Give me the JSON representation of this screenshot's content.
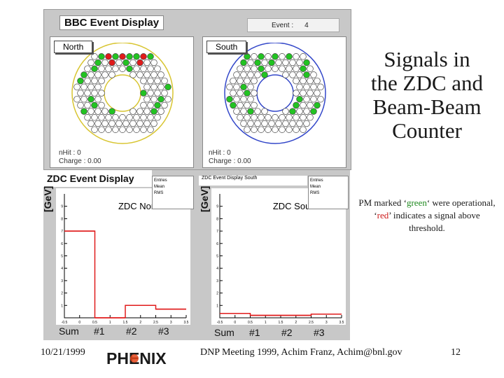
{
  "bbc": {
    "title": "BBC Event Display",
    "event_label": "Event :",
    "event_value": "4",
    "north": {
      "tab": "North",
      "nhit_label": "nHit : 0",
      "charge_label": "Charge :",
      "charge_value": "0.00"
    },
    "south": {
      "tab": "South",
      "nhit_label": "nHit : 0",
      "charge_label": "Charge :",
      "charge_value": "0.00"
    },
    "colors": {
      "green": "#22c322",
      "red": "#e01b1b",
      "off": "#ffffff"
    }
  },
  "zdc": {
    "title": "ZDC Event Display",
    "ylabel": "[GeV]",
    "north": {
      "name": "ZDC North",
      "stats": [
        "Entries",
        "Mean",
        "RMS"
      ],
      "sum_labels": [
        "Sum",
        "#1",
        "#2",
        "#3"
      ]
    },
    "south": {
      "header": "ZDC Event Display South",
      "name": "ZDC South",
      "stats": [
        "Entries",
        "Mean",
        "RMS"
      ],
      "sum_labels": [
        "Sum",
        "#1",
        "#2",
        "#3"
      ]
    }
  },
  "slide": {
    "title_lines": [
      "Signals in",
      "the ZDC and",
      "Beam-Beam",
      "Counter"
    ],
    "note_prefix": "PM marked ‘",
    "note_green": "green",
    "note_mid": "‘ were operational, ‘",
    "note_red": "red",
    "note_suffix": "’ indicates a signal above threshold.",
    "footer_date": "10/21/1999",
    "footer_meeting": "DNP Meeting 1999, Achim Franz, Achim@bnl.gov",
    "page_number": "12",
    "logo_text": "PHENIX"
  },
  "chart_data": [
    {
      "type": "line",
      "title": "ZDC North",
      "ylabel": "[GeV]",
      "xlim": [
        -0.5,
        3.5
      ],
      "ylim": [
        0,
        10
      ],
      "xticks": [
        -0.5,
        0,
        0.5,
        1,
        1.5,
        2,
        2.5,
        3,
        3.5
      ],
      "yticks": [
        1,
        2,
        3,
        4,
        5,
        6,
        7,
        8,
        9
      ],
      "categories": [
        "Sum",
        "#1",
        "#2",
        "#3"
      ],
      "series": [
        {
          "values": [
            7.0,
            0,
            1.0,
            0.7
          ]
        }
      ]
    },
    {
      "type": "line",
      "title": "ZDC South",
      "ylabel": "[GeV]",
      "xlim": [
        -0.5,
        3.5
      ],
      "ylim": [
        0,
        10
      ],
      "xticks": [
        -0.5,
        0,
        0.5,
        1,
        1.5,
        2,
        2.5,
        3,
        3.5
      ],
      "yticks": [
        1,
        2,
        3,
        4,
        5,
        6,
        7,
        8,
        9
      ],
      "categories": [
        "Sum",
        "#1",
        "#2",
        "#3"
      ],
      "series": [
        {
          "values": [
            0.35,
            0.2,
            0.2,
            0.3
          ]
        }
      ]
    }
  ]
}
